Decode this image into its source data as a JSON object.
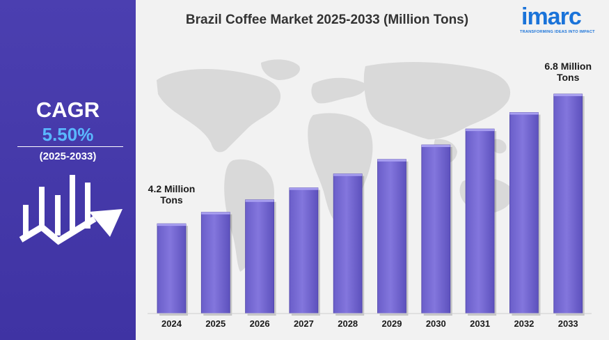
{
  "sidebar": {
    "cagr_title": "CAGR",
    "cagr_value": "5.50%",
    "cagr_period": "(2025-2033)",
    "icon": "growth-chart-arrow-icon"
  },
  "header": {
    "title": "Brazil Coffee Market 2025-2033 (Million Tons)"
  },
  "logo": {
    "word": "imarc",
    "tagline": "TRANSFORMING IDEAS INTO IMPACT"
  },
  "chart_data": {
    "type": "bar",
    "title": "Brazil Coffee Market 2025-2033 (Million Tons)",
    "xlabel": "",
    "ylabel": "",
    "categories": [
      "2024",
      "2025",
      "2026",
      "2027",
      "2028",
      "2029",
      "2030",
      "2031",
      "2032",
      "2033"
    ],
    "values": [
      4.2,
      4.43,
      4.68,
      4.92,
      5.2,
      5.49,
      5.78,
      6.1,
      6.43,
      6.8
    ],
    "ylim": [
      2.4,
      6.8
    ],
    "grid": false,
    "legend": "none",
    "bar_color": "#7b6fd6",
    "annotations": [
      {
        "category": "2024",
        "text": "4.2 Million Tons"
      },
      {
        "category": "2033",
        "text": "6.8 Million Tons"
      }
    ]
  }
}
